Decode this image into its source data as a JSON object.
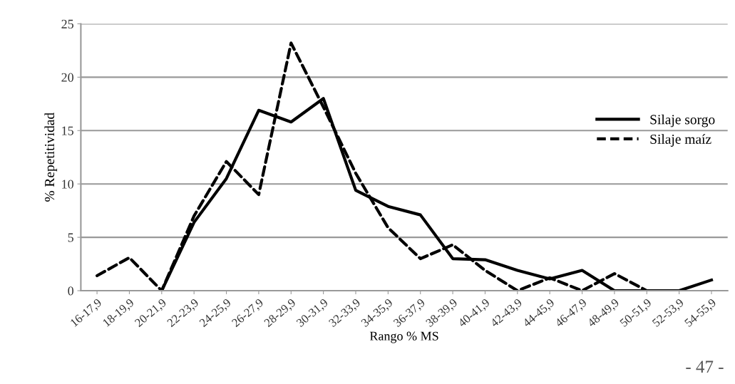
{
  "chart_data": {
    "type": "line",
    "xlabel": "Rango % MS",
    "ylabel": "% Repetitividad",
    "categories": [
      "16-17,9",
      "18-19,9",
      "20-21,9",
      "22-23,9",
      "24-25,9",
      "26-27,9",
      "28-29,9",
      "30-31,9",
      "32-33,9",
      "34-35,9",
      "36-37,9",
      "38-39,9",
      "40-41,9",
      "42-43,9",
      "44-45,9",
      "46-47,9",
      "48-49,9",
      "50-51,9",
      "52-53,9",
      "54-55,9"
    ],
    "series": [
      {
        "name": "Silaje sorgo",
        "color": "#000000",
        "line_style": "solid",
        "values": [
          null,
          null,
          0,
          6.4,
          10.5,
          16.9,
          15.8,
          18,
          9.4,
          7.9,
          7.1,
          3.0,
          2.9,
          1.9,
          1.1,
          1.9,
          0,
          0,
          0,
          1.0
        ]
      },
      {
        "name": "Silaje maíz",
        "color": "#000000",
        "line_style": "dashed",
        "values": [
          1.4,
          3.1,
          0,
          7.0,
          12.1,
          9.0,
          23.2,
          17.2,
          11.0,
          5.9,
          3.0,
          4.3,
          1.9,
          0,
          1.2,
          0,
          1.6,
          0,
          null,
          null
        ]
      }
    ],
    "ylim": [
      0,
      25
    ],
    "yticks": [
      0,
      5,
      10,
      15,
      20,
      25
    ],
    "grid": "y",
    "legend": "right",
    "annotations": [
      "- 47 -"
    ]
  }
}
